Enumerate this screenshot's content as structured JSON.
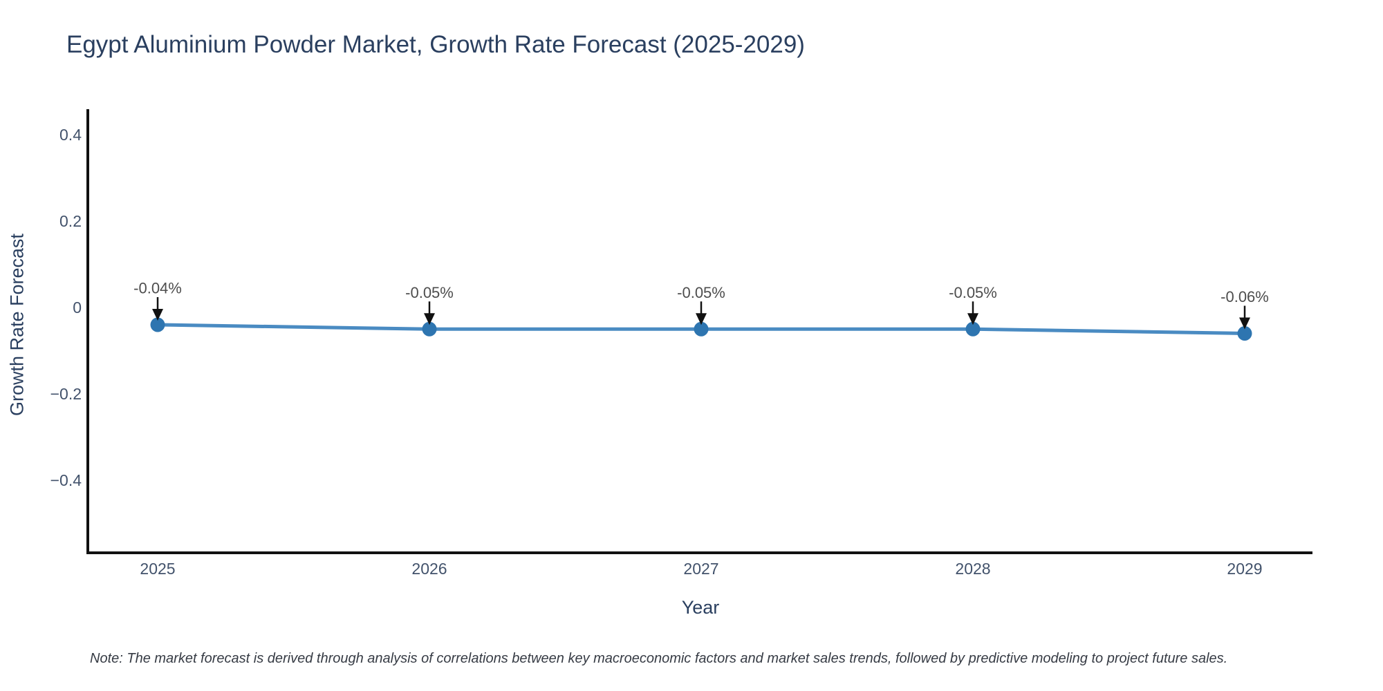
{
  "title": "Egypt Aluminium Powder Market, Growth Rate Forecast (2025-2029)",
  "note": "Note: The market forecast is derived through analysis of correlations between key macroeconomic factors and market sales trends, followed by predictive modeling to project future sales.",
  "chart_data": {
    "type": "line",
    "title": "Egypt Aluminium Powder Market, Growth Rate Forecast (2025-2029)",
    "xlabel": "Year",
    "ylabel": "Growth Rate Forecast",
    "categories": [
      "2025",
      "2026",
      "2027",
      "2028",
      "2029"
    ],
    "values": [
      -0.04,
      -0.05,
      -0.05,
      -0.05,
      -0.06
    ],
    "point_labels": [
      "-0.04%",
      "-0.05%",
      "-0.05%",
      "-0.05%",
      "-0.06%"
    ],
    "y_ticks": [
      0.4,
      0.2,
      0,
      -0.2,
      -0.4
    ],
    "y_tick_labels": [
      "0.4",
      "0.2",
      "0",
      "−0.2",
      "−0.4"
    ],
    "ylim": [
      -0.568,
      0.456
    ],
    "grid": false,
    "legend_position": "none",
    "annotation_style": "down-arrow-to-point",
    "colors": {
      "line": "#4a8bc2",
      "marker": "#2e75b0",
      "axis": "#111111",
      "title_text": "#2a3f5f",
      "tick_text": "#42526b",
      "point_label_text": "#4d4d4d",
      "arrow": "#111111",
      "note_text": "#363b44",
      "background": "#ffffff"
    }
  }
}
